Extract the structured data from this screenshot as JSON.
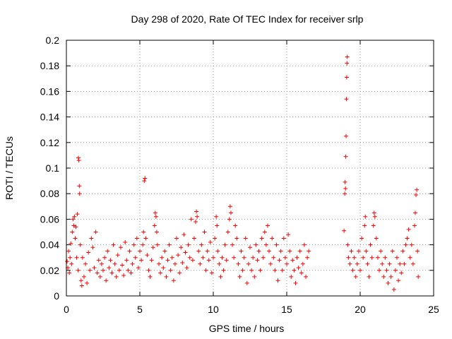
{
  "chart_data": {
    "type": "scatter",
    "title": "Day 298 of 2020, Rate Of TEC Index for receiver srlp",
    "xlabel": "GPS time / hours",
    "ylabel": "ROTI / TECUs",
    "xlim": [
      0,
      25
    ],
    "ylim": [
      0,
      0.2
    ],
    "xticks": [
      0,
      5,
      10,
      15,
      20,
      25
    ],
    "xtick_labels": [
      "0",
      "5",
      "10",
      "15",
      "20",
      "25"
    ],
    "yticks": [
      0,
      0.02,
      0.04,
      0.06,
      0.08,
      0.1,
      0.12,
      0.14,
      0.16,
      0.18,
      0.2
    ],
    "ytick_labels": [
      "0",
      "0.02",
      "0.04",
      "0.06",
      "0.08",
      "0.1",
      "0.12",
      "0.14",
      "0.16",
      "0.18",
      "0.2"
    ],
    "grid": true,
    "marker": "+",
    "color": "#ff0000",
    "series": [
      {
        "name": "ROTI",
        "points": [
          [
            0.05,
            0.027
          ],
          [
            0.1,
            0.022
          ],
          [
            0.15,
            0.035
          ],
          [
            0.2,
            0.018
          ],
          [
            0.25,
            0.03
          ],
          [
            0.3,
            0.041
          ],
          [
            0.35,
            0.025
          ],
          [
            0.4,
            0.05
          ],
          [
            0.45,
            0.06
          ],
          [
            0.5,
            0.055
          ],
          [
            0.55,
            0.062
          ],
          [
            0.6,
            0.045
          ],
          [
            0.65,
            0.054
          ],
          [
            0.7,
            0.03
          ],
          [
            0.75,
            0.064
          ],
          [
            0.8,
            0.02
          ],
          [
            0.82,
            0.108
          ],
          [
            0.85,
            0.106
          ],
          [
            0.88,
            0.086
          ],
          [
            0.9,
            0.08
          ],
          [
            0.95,
            0.04
          ],
          [
            1.0,
            0.012
          ],
          [
            1.05,
            0.008
          ],
          [
            1.1,
            0.03
          ],
          [
            1.2,
            0.015
          ],
          [
            1.3,
            0.025
          ],
          [
            1.4,
            0.01
          ],
          [
            1.5,
            0.034
          ],
          [
            1.6,
            0.02
          ],
          [
            1.7,
            0.045
          ],
          [
            1.8,
            0.038
          ],
          [
            1.9,
            0.022
          ],
          [
            2.0,
            0.05
          ],
          [
            2.1,
            0.018
          ],
          [
            2.2,
            0.028
          ],
          [
            2.3,
            0.015
          ],
          [
            2.4,
            0.025
          ],
          [
            2.5,
            0.02
          ],
          [
            2.6,
            0.03
          ],
          [
            2.7,
            0.012
          ],
          [
            2.8,
            0.035
          ],
          [
            2.9,
            0.022
          ],
          [
            3.0,
            0.028
          ],
          [
            3.1,
            0.018
          ],
          [
            3.2,
            0.04
          ],
          [
            3.3,
            0.025
          ],
          [
            3.4,
            0.015
          ],
          [
            3.5,
            0.032
          ],
          [
            3.6,
            0.02
          ],
          [
            3.7,
            0.038
          ],
          [
            3.8,
            0.024
          ],
          [
            3.9,
            0.016
          ],
          [
            4.0,
            0.042
          ],
          [
            4.1,
            0.028
          ],
          [
            4.2,
            0.02
          ],
          [
            4.3,
            0.035
          ],
          [
            4.4,
            0.018
          ],
          [
            4.5,
            0.025
          ],
          [
            4.6,
            0.04
          ],
          [
            4.7,
            0.03
          ],
          [
            4.8,
            0.045
          ],
          [
            4.9,
            0.022
          ],
          [
            5.0,
            0.035
          ],
          [
            5.1,
            0.028
          ],
          [
            5.2,
            0.04
          ],
          [
            5.25,
            0.05
          ],
          [
            5.3,
            0.09
          ],
          [
            5.35,
            0.092
          ],
          [
            5.4,
            0.045
          ],
          [
            5.5,
            0.032
          ],
          [
            5.6,
            0.02
          ],
          [
            5.7,
            0.015
          ],
          [
            5.8,
            0.028
          ],
          [
            5.9,
            0.038
          ],
          [
            6.0,
            0.055
          ],
          [
            6.05,
            0.065
          ],
          [
            6.1,
            0.062
          ],
          [
            6.15,
            0.05
          ],
          [
            6.2,
            0.04
          ],
          [
            6.3,
            0.025
          ],
          [
            6.4,
            0.018
          ],
          [
            6.5,
            0.03
          ],
          [
            6.6,
            0.022
          ],
          [
            6.7,
            0.035
          ],
          [
            6.8,
            0.015
          ],
          [
            6.9,
            0.028
          ],
          [
            7.0,
            0.04
          ],
          [
            7.1,
            0.02
          ],
          [
            7.2,
            0.03
          ],
          [
            7.3,
            0.012
          ],
          [
            7.4,
            0.025
          ],
          [
            7.5,
            0.045
          ],
          [
            7.6,
            0.032
          ],
          [
            7.7,
            0.018
          ],
          [
            7.8,
            0.038
          ],
          [
            7.9,
            0.026
          ],
          [
            8.0,
            0.048
          ],
          [
            8.1,
            0.034
          ],
          [
            8.2,
            0.022
          ],
          [
            8.3,
            0.04
          ],
          [
            8.4,
            0.03
          ],
          [
            8.5,
            0.06
          ],
          [
            8.6,
            0.028
          ],
          [
            8.7,
            0.045
          ],
          [
            8.8,
            0.058
          ],
          [
            8.85,
            0.066
          ],
          [
            8.9,
            0.062
          ],
          [
            9.0,
            0.035
          ],
          [
            9.1,
            0.025
          ],
          [
            9.2,
            0.04
          ],
          [
            9.3,
            0.03
          ],
          [
            9.4,
            0.05
          ],
          [
            9.5,
            0.02
          ],
          [
            9.6,
            0.035
          ],
          [
            9.7,
            0.028
          ],
          [
            9.8,
            0.042
          ],
          [
            9.9,
            0.018
          ],
          [
            10.0,
            0.03
          ],
          [
            10.1,
            0.045
          ],
          [
            10.2,
            0.062
          ],
          [
            10.25,
            0.055
          ],
          [
            10.3,
            0.035
          ],
          [
            10.4,
            0.025
          ],
          [
            10.5,
            0.015
          ],
          [
            10.6,
            0.03
          ],
          [
            10.7,
            0.02
          ],
          [
            10.8,
            0.04
          ],
          [
            10.9,
            0.028
          ],
          [
            11.0,
            0.05
          ],
          [
            11.1,
            0.06
          ],
          [
            11.15,
            0.07
          ],
          [
            11.2,
            0.065
          ],
          [
            11.3,
            0.04
          ],
          [
            11.4,
            0.03
          ],
          [
            11.5,
            0.055
          ],
          [
            11.6,
            0.045
          ],
          [
            11.7,
            0.025
          ],
          [
            11.8,
            0.015
          ],
          [
            11.9,
            0.035
          ],
          [
            12.0,
            0.02
          ],
          [
            12.1,
            0.03
          ],
          [
            12.2,
            0.045
          ],
          [
            12.3,
            0.01
          ],
          [
            12.4,
            0.025
          ],
          [
            12.5,
            0.038
          ],
          [
            12.6,
            0.02
          ],
          [
            12.7,
            0.03
          ],
          [
            12.8,
            0.015
          ],
          [
            12.9,
            0.04
          ],
          [
            13.0,
            0.028
          ],
          [
            13.1,
            0.035
          ],
          [
            13.2,
            0.02
          ],
          [
            13.3,
            0.045
          ],
          [
            13.4,
            0.03
          ],
          [
            13.5,
            0.05
          ],
          [
            13.6,
            0.04
          ],
          [
            13.7,
            0.055
          ],
          [
            13.8,
            0.035
          ],
          [
            13.9,
            0.025
          ],
          [
            14.0,
            0.045
          ],
          [
            14.1,
            0.03
          ],
          [
            14.2,
            0.02
          ],
          [
            14.3,
            0.04
          ],
          [
            14.4,
            0.012
          ],
          [
            14.5,
            0.028
          ],
          [
            14.6,
            0.035
          ],
          [
            14.7,
            0.02
          ],
          [
            14.8,
            0.045
          ],
          [
            14.9,
            0.03
          ],
          [
            15.0,
            0.025
          ],
          [
            15.1,
            0.048
          ],
          [
            15.2,
            0.035
          ],
          [
            15.3,
            0.015
          ],
          [
            15.4,
            0.028
          ],
          [
            15.5,
            0.02
          ],
          [
            15.6,
            0.01
          ],
          [
            15.7,
            0.03
          ],
          [
            15.8,
            0.022
          ],
          [
            15.9,
            0.035
          ],
          [
            16.0,
            0.018
          ],
          [
            16.1,
            0.025
          ],
          [
            16.2,
            0.04
          ],
          [
            16.3,
            0.015
          ],
          [
            16.4,
            0.03
          ],
          [
            16.5,
            0.035
          ],
          [
            18.9,
            0.051
          ],
          [
            18.95,
            0.08
          ],
          [
            18.97,
            0.089
          ],
          [
            19.0,
            0.084
          ],
          [
            19.02,
            0.109
          ],
          [
            19.04,
            0.125
          ],
          [
            19.06,
            0.154
          ],
          [
            19.08,
            0.171
          ],
          [
            19.1,
            0.182
          ],
          [
            19.12,
            0.187
          ],
          [
            19.15,
            0.04
          ],
          [
            19.2,
            0.03
          ],
          [
            19.3,
            0.025
          ],
          [
            19.4,
            0.035
          ],
          [
            19.5,
            0.02
          ],
          [
            19.6,
            0.03
          ],
          [
            19.7,
            0.015
          ],
          [
            19.8,
            0.025
          ],
          [
            19.9,
            0.035
          ],
          [
            20.0,
            0.02
          ],
          [
            20.1,
            0.045
          ],
          [
            20.2,
            0.03
          ],
          [
            20.3,
            0.055
          ],
          [
            20.35,
            0.062
          ],
          [
            20.4,
            0.035
          ],
          [
            20.5,
            0.025
          ],
          [
            20.6,
            0.015
          ],
          [
            20.7,
            0.04
          ],
          [
            20.8,
            0.03
          ],
          [
            20.9,
            0.055
          ],
          [
            20.95,
            0.065
          ],
          [
            21.0,
            0.062
          ],
          [
            21.1,
            0.045
          ],
          [
            21.2,
            0.03
          ],
          [
            21.3,
            0.02
          ],
          [
            21.4,
            0.035
          ],
          [
            21.5,
            0.025
          ],
          [
            21.6,
            0.015
          ],
          [
            21.7,
            0.03
          ],
          [
            21.8,
            0.02
          ],
          [
            21.9,
            0.01
          ],
          [
            22.0,
            0.025
          ],
          [
            22.1,
            0.015
          ],
          [
            22.2,
            0.035
          ],
          [
            22.3,
            0.005
          ],
          [
            22.4,
            0.02
          ],
          [
            22.5,
            0.03
          ],
          [
            22.6,
            0.012
          ],
          [
            22.7,
            0.025
          ],
          [
            22.8,
            0.018
          ],
          [
            22.9,
            0.035
          ],
          [
            23.0,
            0.025
          ],
          [
            23.1,
            0.04
          ],
          [
            23.2,
            0.045
          ],
          [
            23.3,
            0.052
          ],
          [
            23.4,
            0.03
          ],
          [
            23.5,
            0.04
          ],
          [
            23.6,
            0.025
          ],
          [
            23.7,
            0.055
          ],
          [
            23.75,
            0.065
          ],
          [
            23.8,
            0.079
          ],
          [
            23.85,
            0.083
          ],
          [
            23.9,
            0.035
          ],
          [
            23.95,
            0.015
          ]
        ]
      }
    ]
  }
}
